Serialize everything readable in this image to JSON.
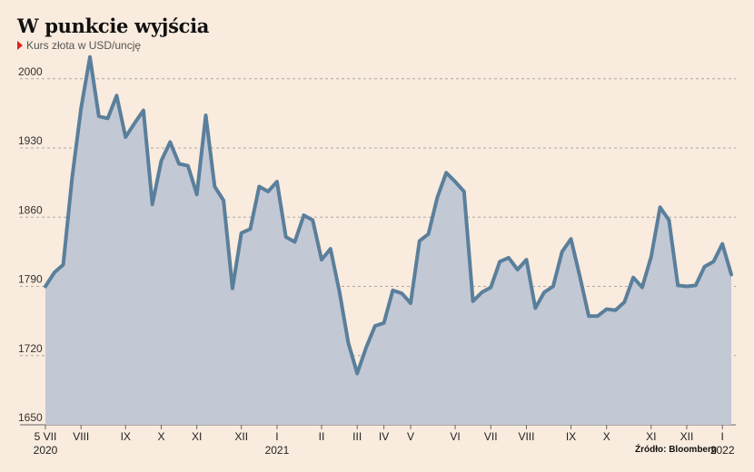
{
  "title": "W punkcie wyjścia",
  "subtitle": "Kurs złota w USD/uncję",
  "source": "Źródło: Bloomberg",
  "colors": {
    "line": "#5a7f9c",
    "area": "#c2c8d4",
    "marker": "#e0221c",
    "background": "#f9ebdd"
  },
  "chart_data": {
    "type": "area",
    "title": "W punkcie wyjścia",
    "subtitle": "Kurs złota w USD/uncję",
    "ylim": [
      1650,
      2020
    ],
    "yticks": [
      1650,
      1720,
      1790,
      1860,
      1930,
      2000
    ],
    "x_tick_labels": [
      {
        "label": "5 VII",
        "x": 0
      },
      {
        "label": "VIII",
        "x": 4
      },
      {
        "label": "IX",
        "x": 9
      },
      {
        "label": "X",
        "x": 13
      },
      {
        "label": "XI",
        "x": 17
      },
      {
        "label": "XII",
        "x": 22
      },
      {
        "label": "I",
        "x": 26
      },
      {
        "label": "II",
        "x": 31
      },
      {
        "label": "III",
        "x": 35
      },
      {
        "label": "IV",
        "x": 38
      },
      {
        "label": "V",
        "x": 41
      },
      {
        "label": "VI",
        "x": 46
      },
      {
        "label": "VII",
        "x": 50
      },
      {
        "label": "VIII",
        "x": 54
      },
      {
        "label": "IX",
        "x": 59
      },
      {
        "label": "X",
        "x": 63
      },
      {
        "label": "XI",
        "x": 68
      },
      {
        "label": "XII",
        "x": 72
      },
      {
        "label": "I",
        "x": 76
      }
    ],
    "year_labels": [
      {
        "label": "2020",
        "x": 0
      },
      {
        "label": "2021",
        "x": 26
      },
      {
        "label": "2022",
        "x": 76
      }
    ],
    "series": [
      {
        "values": [
          1790,
          1804,
          1812,
          1900,
          1970,
          2022,
          1962,
          1960,
          1983,
          1941,
          1955,
          1968,
          1873,
          1917,
          1936,
          1914,
          1912,
          1883,
          1963,
          1891,
          1877,
          1788,
          1844,
          1848,
          1891,
          1886,
          1896,
          1840,
          1835,
          1862,
          1857,
          1817,
          1828,
          1785,
          1733,
          1702,
          1728,
          1750,
          1753,
          1786,
          1783,
          1773,
          1836,
          1843,
          1880,
          1905,
          1896,
          1886,
          1775,
          1784,
          1789,
          1815,
          1819,
          1807,
          1817,
          1768,
          1784,
          1790,
          1825,
          1838,
          1800,
          1760,
          1760,
          1767,
          1766,
          1774,
          1799,
          1789,
          1820,
          1870,
          1857,
          1791,
          1790,
          1791,
          1810,
          1815,
          1833,
          1802
        ]
      }
    ]
  }
}
